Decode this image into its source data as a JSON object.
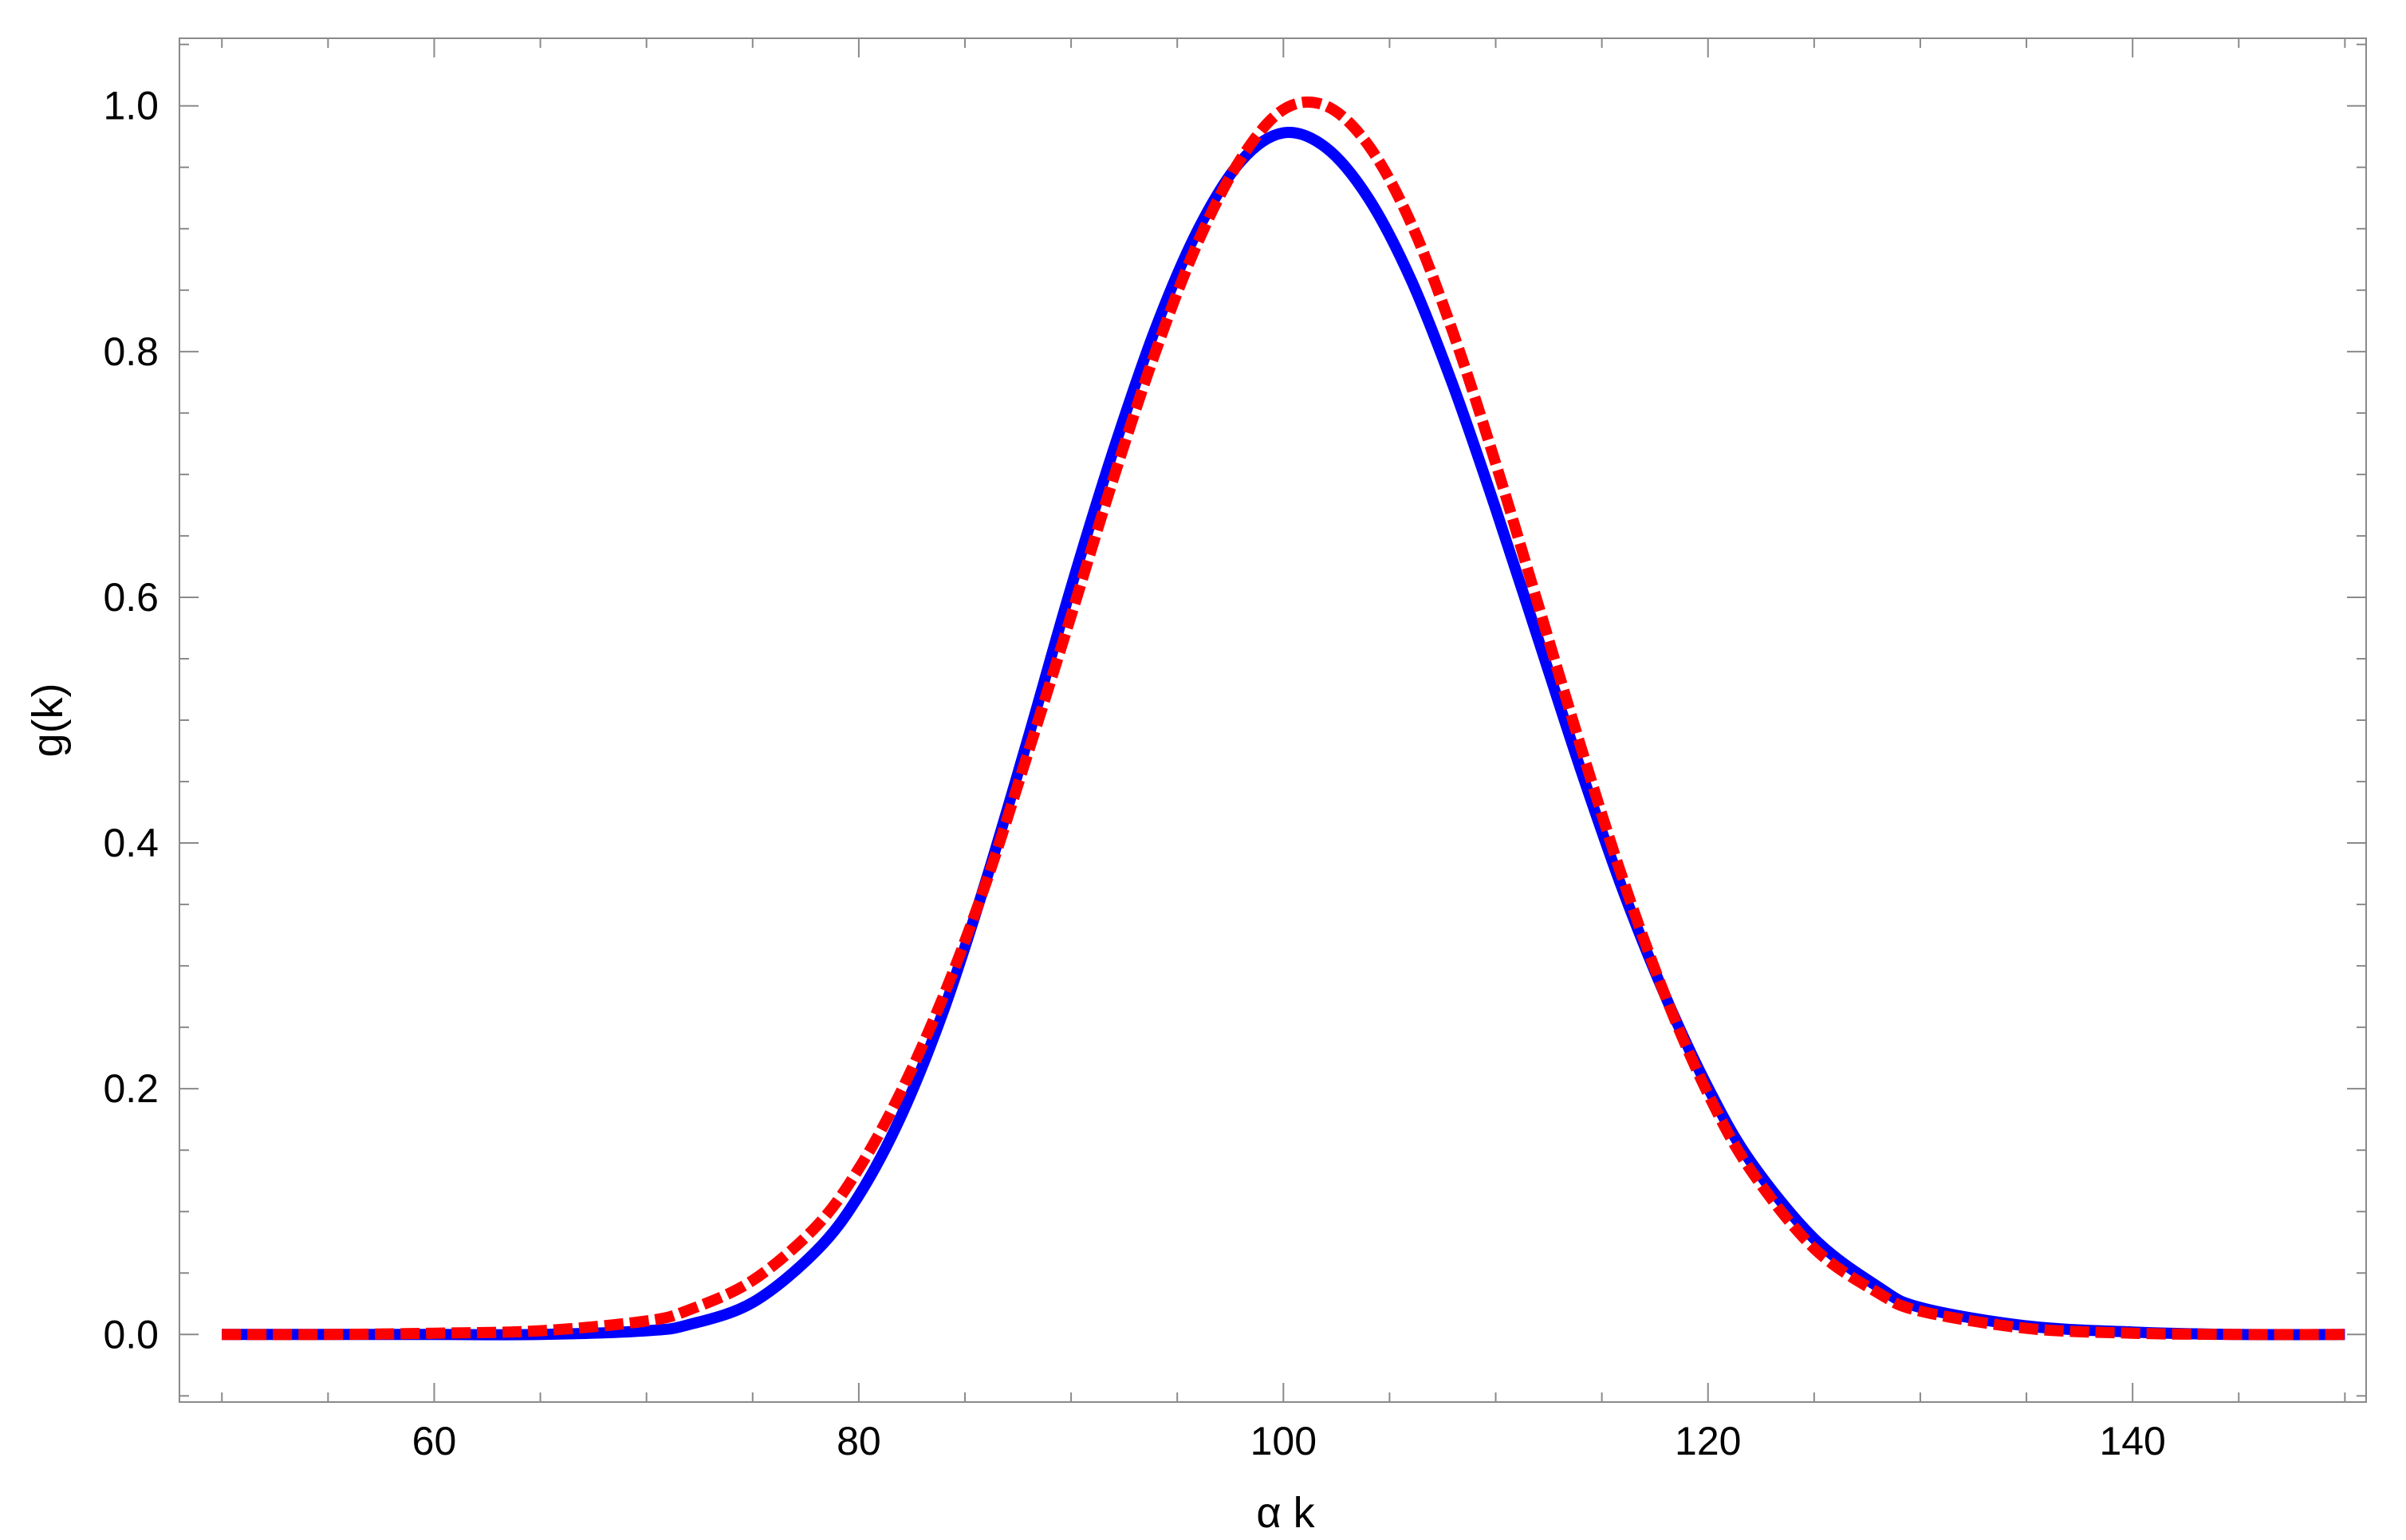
{
  "chart_data": {
    "type": "line",
    "title": "",
    "xlabel": "α k",
    "ylabel": "g(k)",
    "xlim": [
      48,
      151
    ],
    "ylim": [
      -0.055,
      1.055
    ],
    "x_ticks": [
      60,
      80,
      100,
      120,
      140
    ],
    "x_tick_labels": [
      "60",
      "80",
      "100",
      "120",
      "140"
    ],
    "y_ticks": [
      0.0,
      0.2,
      0.4,
      0.6,
      0.8,
      1.0
    ],
    "y_tick_labels": [
      "0.0",
      "0.2",
      "0.4",
      "0.6",
      "0.8",
      "1.0"
    ],
    "grid": false,
    "x": [
      50,
      55,
      60,
      65,
      70,
      72,
      75,
      78,
      80,
      82,
      84,
      86,
      88,
      90,
      92,
      94,
      96,
      98,
      100,
      102,
      104,
      106,
      108,
      110,
      112,
      114,
      116,
      118,
      120,
      122,
      125,
      128,
      130,
      135,
      140,
      145,
      150
    ],
    "series": [
      {
        "color": "#0000ff",
        "style": "solid",
        "values": [
          0.0,
          0.0,
          0.0,
          0.0,
          0.003,
          0.008,
          0.026,
          0.068,
          0.113,
          0.178,
          0.264,
          0.37,
          0.487,
          0.608,
          0.72,
          0.82,
          0.9,
          0.955,
          0.978,
          0.966,
          0.925,
          0.859,
          0.772,
          0.672,
          0.566,
          0.46,
          0.361,
          0.275,
          0.201,
          0.141,
          0.078,
          0.039,
          0.022,
          0.007,
          0.002,
          0.0,
          0.0
        ]
      },
      {
        "color": "#ff0000",
        "style": "dashed",
        "values": [
          0.0,
          0.0,
          0.001,
          0.003,
          0.011,
          0.02,
          0.044,
          0.088,
          0.135,
          0.198,
          0.276,
          0.368,
          0.475,
          0.585,
          0.697,
          0.801,
          0.89,
          0.957,
          0.997,
          1.0,
          0.968,
          0.905,
          0.815,
          0.709,
          0.594,
          0.479,
          0.37,
          0.275,
          0.196,
          0.134,
          0.07,
          0.034,
          0.019,
          0.005,
          0.001,
          0.0,
          0.0
        ]
      }
    ]
  }
}
